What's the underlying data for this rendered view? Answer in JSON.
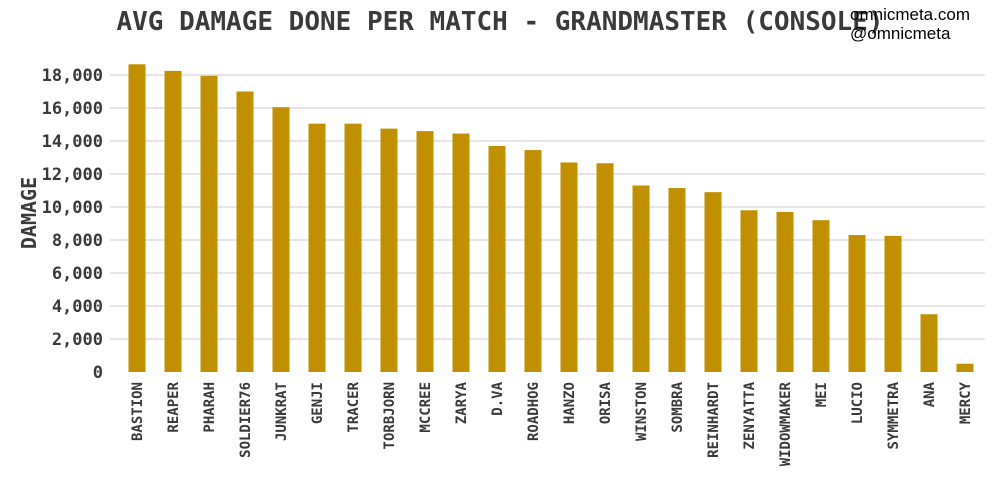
{
  "credits": {
    "site": "omnicmeta.com",
    "handle": "@omnicmeta"
  },
  "colors": {
    "bar": "#C09000",
    "grid": "#CCCCCC",
    "text": "#3A3A3A"
  },
  "chart_data": {
    "type": "bar",
    "title": "AVG DAMAGE DONE PER MATCH - GRANDMASTER (CONSOLE)",
    "xlabel": "",
    "ylabel": "DAMAGE",
    "ylim": [
      0,
      18000
    ],
    "yticks": [
      0,
      2000,
      4000,
      6000,
      8000,
      10000,
      12000,
      14000,
      16000,
      18000
    ],
    "ytick_labels": [
      "0",
      "2,000",
      "4,000",
      "6,000",
      "8,000",
      "10,000",
      "12,000",
      "14,000",
      "16,000",
      "18,000"
    ],
    "grid": true,
    "categories": [
      "BASTION",
      "REAPER",
      "PHARAH",
      "SOLDIER76",
      "JUNKRAT",
      "GENJI",
      "TRACER",
      "TORBJORN",
      "MCCREE",
      "ZARYA",
      "D.VA",
      "ROADHOG",
      "HANZO",
      "ORISA",
      "WINSTON",
      "SOMBRA",
      "REINHARDT",
      "ZENYATTA",
      "WIDOWMAKER",
      "MEI",
      "LUCIO",
      "SYMMETRA",
      "ANA",
      "MERCY"
    ],
    "values": [
      18650,
      18250,
      17950,
      17000,
      16050,
      15050,
      15050,
      14750,
      14600,
      14450,
      13700,
      13450,
      12700,
      12650,
      11300,
      11150,
      10900,
      9800,
      9700,
      9200,
      8300,
      8250,
      3500,
      500
    ]
  }
}
